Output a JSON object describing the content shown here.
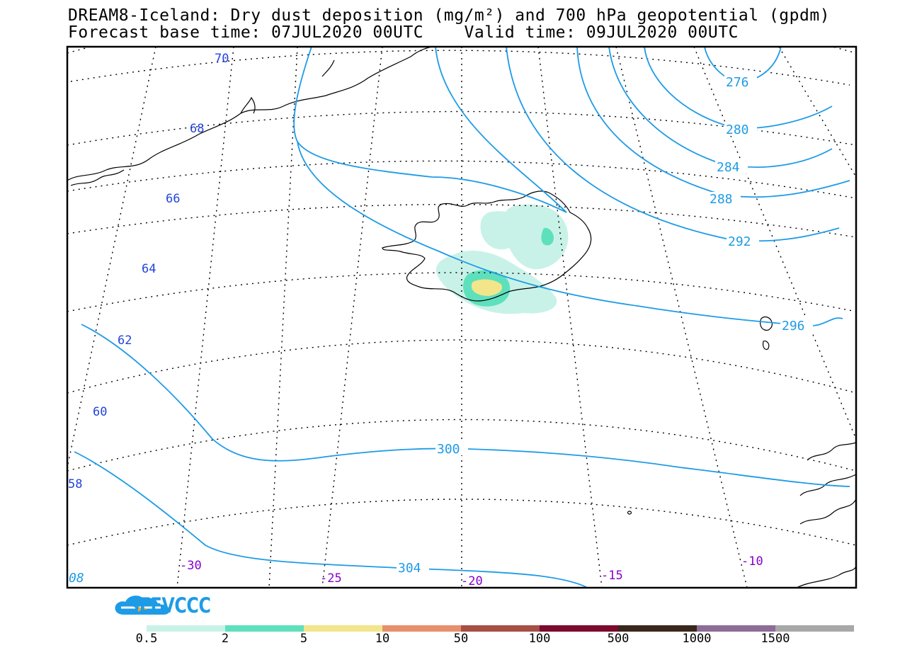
{
  "header": {
    "title_line1": "DREAM8-Iceland: Dry dust deposition (mg/m²) and 700 hPa geopotential (gpdm)",
    "title_line2": "Forecast base time: 07JUL2020 00UTC    Valid time: 09JUL2020 00UTC"
  },
  "map": {
    "region": "Iceland",
    "field_shaded": "Dry dust deposition",
    "field_contour": "700 hPa geopotential",
    "contour_color": "#1e9be6",
    "latitude_labels": [
      "70",
      "68",
      "66",
      "64",
      "62",
      "60",
      "58"
    ],
    "longitude_labels": [
      "-30",
      "-25",
      "-20",
      "-15",
      "-10"
    ],
    "geopotential_labels": [
      "276",
      "280",
      "284",
      "288",
      "292",
      "296",
      "300",
      "304",
      "08"
    ],
    "latitude_label_color": "#2244dd",
    "longitude_label_color": "#8800cc"
  },
  "branding": {
    "logo_text": "SEEVCCC",
    "logo_icon": "cloud-icon",
    "brand_color": "#1e9be6"
  },
  "legend": {
    "colors": [
      "#c8f2e8",
      "#5fe0bd",
      "#f3e68a",
      "#e8906e",
      "#a64f45",
      "#7d0a2e",
      "#3a271c",
      "#8e6c98",
      "#a8a8a8"
    ],
    "labels": [
      "0.5",
      "2",
      "5",
      "10",
      "50",
      "100",
      "500",
      "1000",
      "1500"
    ]
  }
}
